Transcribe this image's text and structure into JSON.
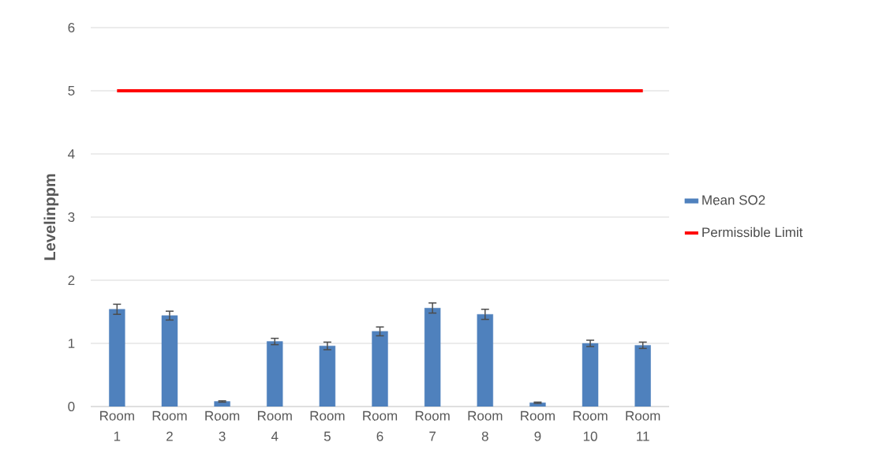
{
  "chart_data": {
    "type": "bar",
    "ylabel": "Levelinppm",
    "categories": [
      "Room 1",
      "Room 2",
      "Room 3",
      "Room 4",
      "Room 5",
      "Room 6",
      "Room 7",
      "Room 8",
      "Room 9",
      "Room 10",
      "Room 11"
    ],
    "series": [
      {
        "name": "Mean SO2",
        "color": "#4f81bd",
        "values": [
          1.54,
          1.44,
          0.08,
          1.03,
          0.96,
          1.19,
          1.56,
          1.46,
          0.06,
          1.0,
          0.97
        ],
        "errors": [
          0.08,
          0.07,
          0.01,
          0.05,
          0.06,
          0.07,
          0.08,
          0.08,
          0.01,
          0.05,
          0.05
        ]
      },
      {
        "name": "Permissible Limit",
        "type": "line",
        "color": "#ff0000",
        "values": [
          5,
          5,
          5,
          5,
          5,
          5,
          5,
          5,
          5,
          5,
          5
        ]
      }
    ],
    "ylim": [
      0,
      6
    ],
    "yticks": [
      0,
      1,
      2,
      3,
      4,
      5,
      6
    ],
    "grid": "y",
    "legend": "right",
    "marker": "none"
  }
}
